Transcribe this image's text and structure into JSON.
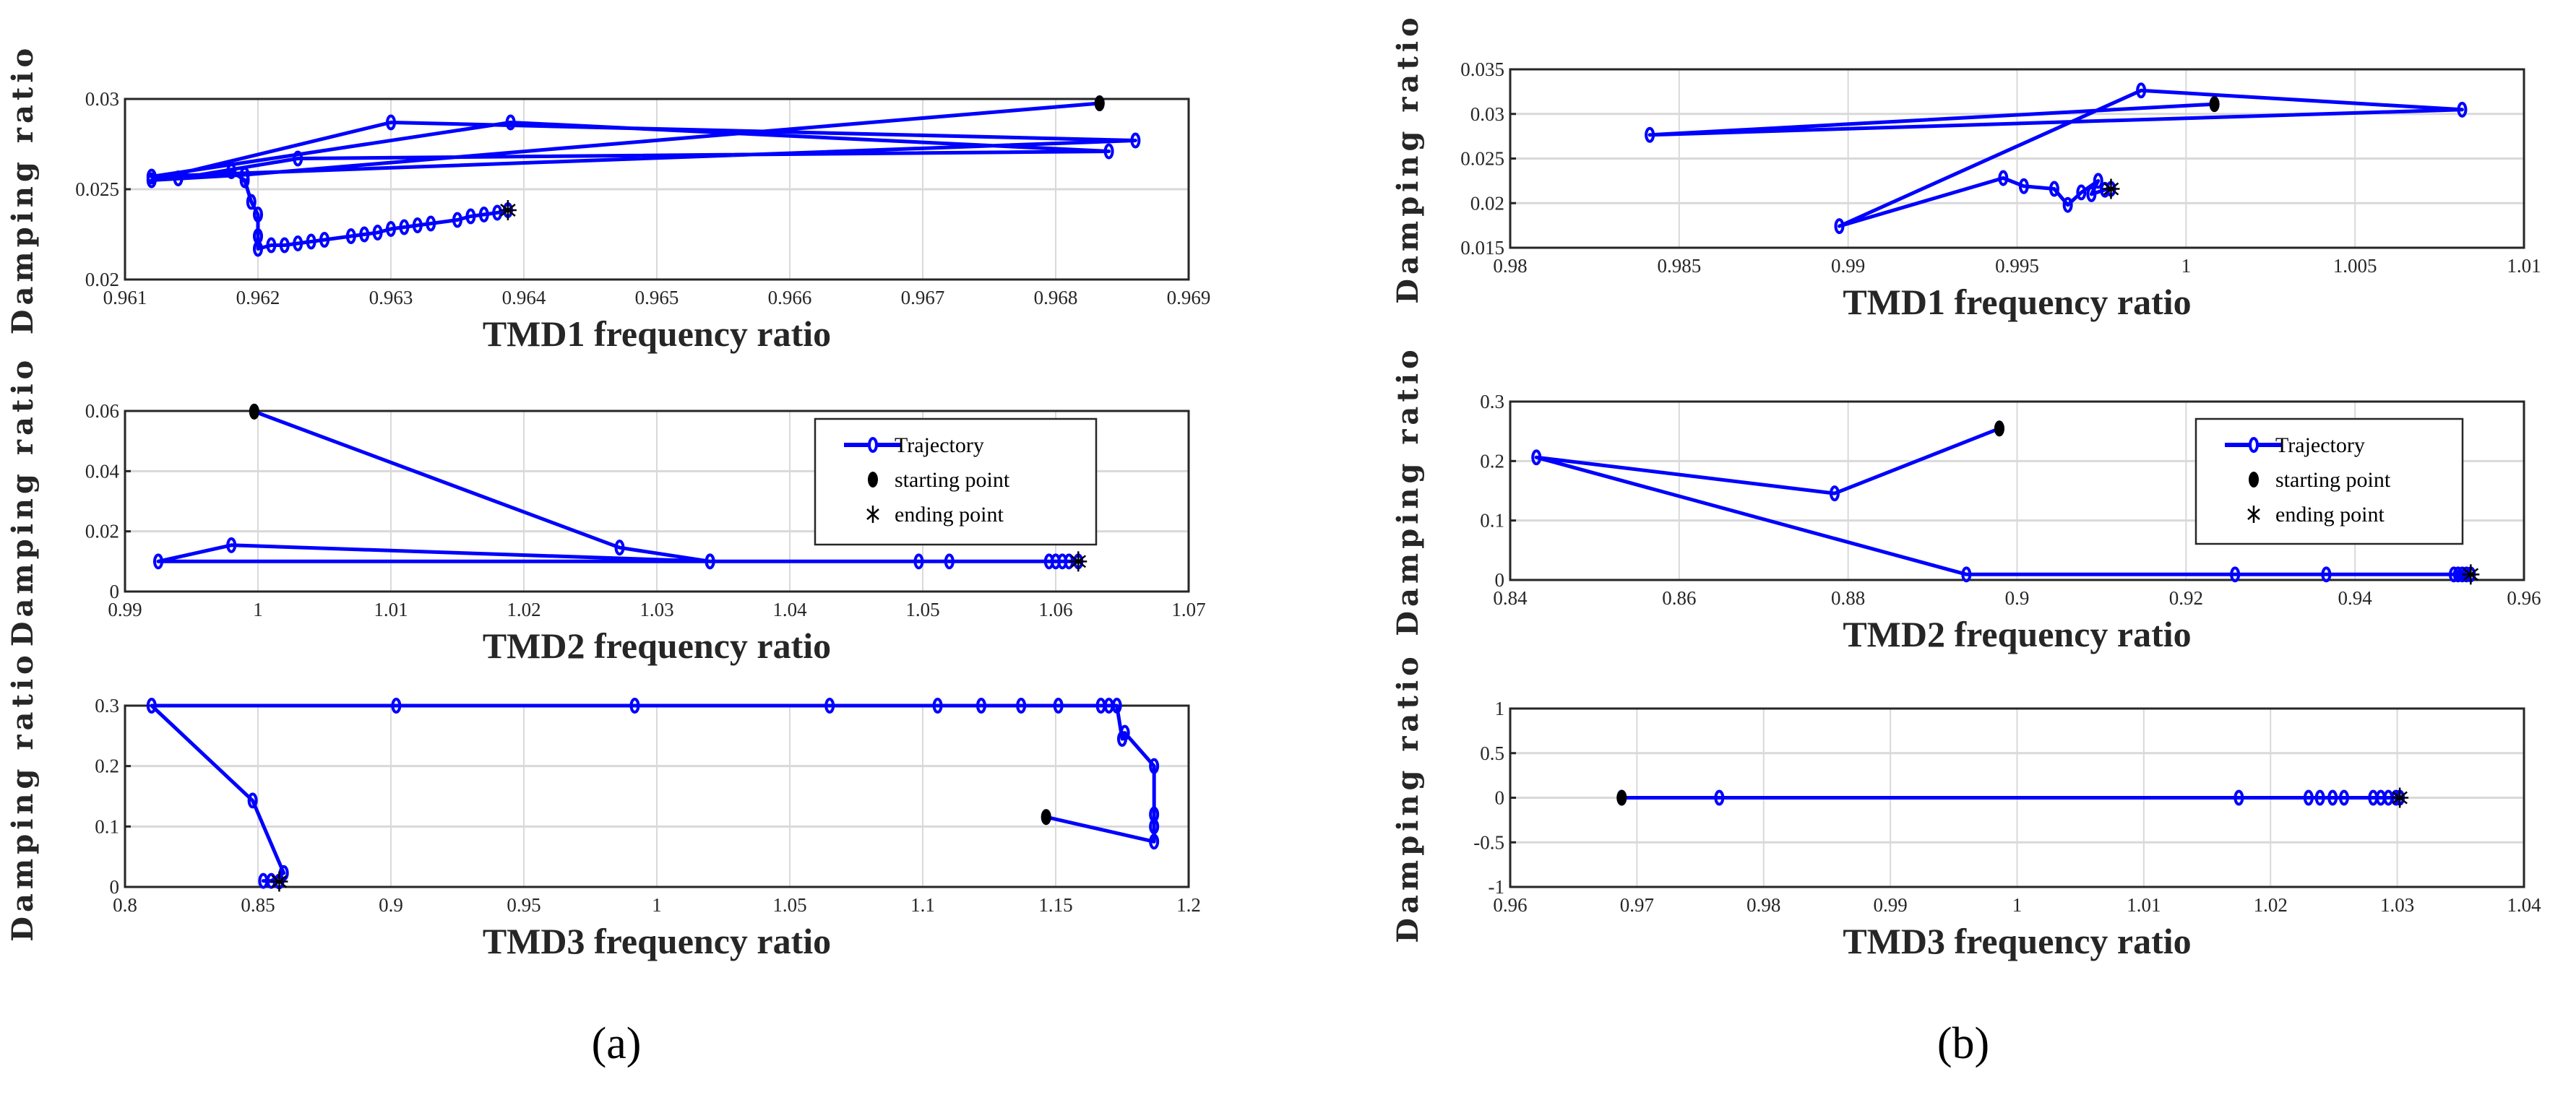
{
  "captions": {
    "a": "(a)",
    "b": "(b)"
  },
  "colors": {
    "trajectory": "#0000ff",
    "start": "#000000",
    "end": "#000000",
    "grid": "#d9d9d9",
    "axis": "#262626"
  },
  "legend_labels": {
    "trajectory": "Trajectory",
    "start": "starting point",
    "end": "ending point"
  },
  "chart_data": [
    {
      "id": "a1",
      "panel": "a",
      "type": "line",
      "title": "",
      "xlabel": "TMD1 frequency ratio",
      "ylabel": "Damping ratio",
      "xlim": [
        0.961,
        0.969
      ],
      "ylim": [
        0.02,
        0.03
      ],
      "grid": true,
      "legend": null,
      "xticks": [
        "0.961",
        "0.962",
        "0.963",
        "0.964",
        "0.965",
        "0.966",
        "0.967",
        "0.968",
        "0.969"
      ],
      "yticks": [
        "0.02",
        "0.025",
        "0.03"
      ],
      "trajectory": [
        [
          0.96833,
          0.02976
        ],
        [
          0.9619,
          0.0258
        ],
        [
          0.9612,
          0.0255
        ],
        [
          0.963,
          0.0287
        ],
        [
          0.9686,
          0.0277
        ],
        [
          0.9612,
          0.0257
        ],
        [
          0.9639,
          0.0287
        ],
        [
          0.9684,
          0.0271
        ],
        [
          0.9623,
          0.0267
        ],
        [
          0.9614,
          0.0256
        ],
        [
          0.9618,
          0.026
        ],
        [
          0.9619,
          0.0255
        ],
        [
          0.96195,
          0.0243
        ],
        [
          0.962,
          0.0236
        ],
        [
          0.962,
          0.0224
        ],
        [
          0.962,
          0.0217
        ],
        [
          0.9621,
          0.0219
        ],
        [
          0.9622,
          0.0219
        ],
        [
          0.9623,
          0.022
        ],
        [
          0.9624,
          0.0221
        ],
        [
          0.9625,
          0.0222
        ],
        [
          0.9627,
          0.0224
        ],
        [
          0.9628,
          0.0225
        ],
        [
          0.9629,
          0.0226
        ],
        [
          0.963,
          0.0228
        ],
        [
          0.9631,
          0.0229
        ],
        [
          0.9632,
          0.023
        ],
        [
          0.9633,
          0.0231
        ],
        [
          0.9635,
          0.0233
        ],
        [
          0.9636,
          0.0235
        ],
        [
          0.9637,
          0.0236
        ],
        [
          0.9638,
          0.0237
        ],
        [
          0.96388,
          0.02384
        ]
      ],
      "start": [
        0.96833,
        0.02976
      ],
      "end": [
        0.96388,
        0.02384
      ]
    },
    {
      "id": "a2",
      "panel": "a",
      "type": "line",
      "title": "",
      "xlabel": "TMD2 frequency ratio",
      "ylabel": "Damping ratio",
      "xlim": [
        0.99,
        1.07
      ],
      "ylim": [
        0,
        0.06
      ],
      "grid": true,
      "legend": "top-right",
      "xticks": [
        "0.99",
        "1",
        "1.01",
        "1.02",
        "1.03",
        "1.04",
        "1.05",
        "1.06",
        "1.07"
      ],
      "yticks": [
        "0",
        "0.02",
        "0.04",
        "0.06"
      ],
      "trajectory": [
        [
          0.99972,
          0.0598
        ],
        [
          1.0272,
          0.0146
        ],
        [
          1.034,
          0.01
        ],
        [
          0.9925,
          0.01
        ],
        [
          0.998,
          0.0154
        ],
        [
          1.034,
          0.01
        ],
        [
          1.0497,
          0.01
        ],
        [
          1.052,
          0.01
        ],
        [
          1.0595,
          0.01
        ],
        [
          1.06,
          0.01
        ],
        [
          1.0605,
          0.01
        ],
        [
          1.061,
          0.01
        ],
        [
          1.0617,
          0.01
        ]
      ],
      "start": [
        0.99972,
        0.0598
      ],
      "end": [
        1.0617,
        0.01
      ]
    },
    {
      "id": "a3",
      "panel": "a",
      "type": "line",
      "title": "",
      "xlabel": "TMD3 frequency ratio",
      "ylabel": "Damping ratio",
      "xlim": [
        0.8,
        1.2
      ],
      "ylim": [
        0,
        0.3
      ],
      "grid": true,
      "legend": null,
      "xticks": [
        "0.8",
        "0.85",
        "0.9",
        "0.95",
        "1",
        "1.05",
        "1.1",
        "1.15",
        "1.2"
      ],
      "yticks": [
        "0",
        "0.1",
        "0.2",
        "0.3"
      ],
      "trajectory": [
        [
          1.1464,
          0.1157
        ],
        [
          1.187,
          0.075
        ],
        [
          1.187,
          0.1
        ],
        [
          1.187,
          0.12
        ],
        [
          1.187,
          0.2
        ],
        [
          1.176,
          0.255
        ],
        [
          1.175,
          0.245
        ],
        [
          1.173,
          0.3
        ],
        [
          1.17,
          0.3
        ],
        [
          1.167,
          0.3
        ],
        [
          1.151,
          0.3
        ],
        [
          1.137,
          0.3
        ],
        [
          1.122,
          0.3
        ],
        [
          1.1056,
          0.3
        ],
        [
          1.065,
          0.3
        ],
        [
          0.9917,
          0.3
        ],
        [
          0.902,
          0.3
        ],
        [
          0.81,
          0.3
        ],
        [
          0.848,
          0.143
        ],
        [
          0.8597,
          0.023
        ],
        [
          0.855,
          0.01
        ],
        [
          0.852,
          0.01
        ],
        [
          0.858,
          0.009
        ]
      ],
      "start": [
        1.1464,
        0.1157
      ],
      "end": [
        0.858,
        0.009
      ]
    },
    {
      "id": "b1",
      "panel": "b",
      "type": "line",
      "title": "",
      "xlabel": "TMD1 frequency ratio",
      "ylabel": "Damping ratio",
      "xlim": [
        0.98,
        1.01
      ],
      "ylim": [
        0.015,
        0.035
      ],
      "grid": true,
      "legend": null,
      "xticks": [
        "0.98",
        "0.985",
        "0.99",
        "0.995",
        "1",
        "1.005",
        "1.01"
      ],
      "yticks": [
        "0.015",
        "0.02",
        "0.025",
        "0.03",
        "0.035"
      ],
      "trajectory": [
        [
          1.00084,
          0.0311
        ],
        [
          0.98413,
          0.02765
        ],
        [
          1.00817,
          0.03048
        ],
        [
          0.99867,
          0.03263
        ],
        [
          0.98974,
          0.01742
        ],
        [
          0.99459,
          0.02281
        ],
        [
          0.9952,
          0.0219
        ],
        [
          0.9961,
          0.0216
        ],
        [
          0.9965,
          0.0198
        ],
        [
          0.9969,
          0.0212
        ],
        [
          0.9974,
          0.0225
        ],
        [
          0.9972,
          0.021
        ],
        [
          0.9976,
          0.0215
        ],
        [
          0.99778,
          0.0216
        ]
      ],
      "start": [
        1.00084,
        0.0311
      ],
      "end": [
        0.99778,
        0.0216
      ]
    },
    {
      "id": "b2",
      "panel": "b",
      "type": "line",
      "title": "",
      "xlabel": "TMD2 frequency ratio",
      "ylabel": "Damping ratio",
      "xlim": [
        0.84,
        0.96
      ],
      "ylim": [
        0,
        0.3
      ],
      "grid": true,
      "legend": "top-right",
      "xticks": [
        "0.84",
        "0.86",
        "0.88",
        "0.9",
        "0.92",
        "0.94",
        "0.96"
      ],
      "yticks": [
        "0",
        "0.1",
        "0.2",
        "0.3"
      ],
      "trajectory": [
        [
          0.8979,
          0.2547
        ],
        [
          0.8784,
          0.1456
        ],
        [
          0.8431,
          0.2062
        ],
        [
          0.894,
          0.0093
        ],
        [
          0.9258,
          0.0093
        ],
        [
          0.9366,
          0.0093
        ],
        [
          0.9517,
          0.0093
        ],
        [
          0.9522,
          0.0093
        ],
        [
          0.9527,
          0.0093
        ],
        [
          0.9532,
          0.0093
        ],
        [
          0.9537,
          0.0093
        ]
      ],
      "start": [
        0.8979,
        0.2547
      ],
      "end": [
        0.9537,
        0.0093
      ]
    },
    {
      "id": "b3",
      "panel": "b",
      "type": "line",
      "title": "",
      "xlabel": "TMD3 frequency ratio",
      "ylabel": "Damping ratio",
      "xlim": [
        0.96,
        1.04
      ],
      "ylim": [
        -1,
        1
      ],
      "grid": true,
      "legend": null,
      "xticks": [
        "0.96",
        "0.97",
        "0.98",
        "0.99",
        "1",
        "1.01",
        "1.02",
        "1.03",
        "1.04"
      ],
      "yticks": [
        "-1",
        "-0.5",
        "0",
        "0.5",
        "1"
      ],
      "trajectory": [
        [
          0.9688,
          0
        ],
        [
          0.9765,
          0
        ],
        [
          1.0175,
          0
        ],
        [
          1.023,
          0
        ],
        [
          1.0239,
          0
        ],
        [
          1.0249,
          0
        ],
        [
          1.0258,
          0
        ],
        [
          1.0281,
          0
        ],
        [
          1.0287,
          0
        ],
        [
          1.0293,
          0
        ],
        [
          1.0299,
          0
        ],
        [
          1.0302,
          0
        ]
      ],
      "start": [
        0.9688,
        0
      ],
      "end": [
        1.0302,
        0
      ]
    }
  ]
}
